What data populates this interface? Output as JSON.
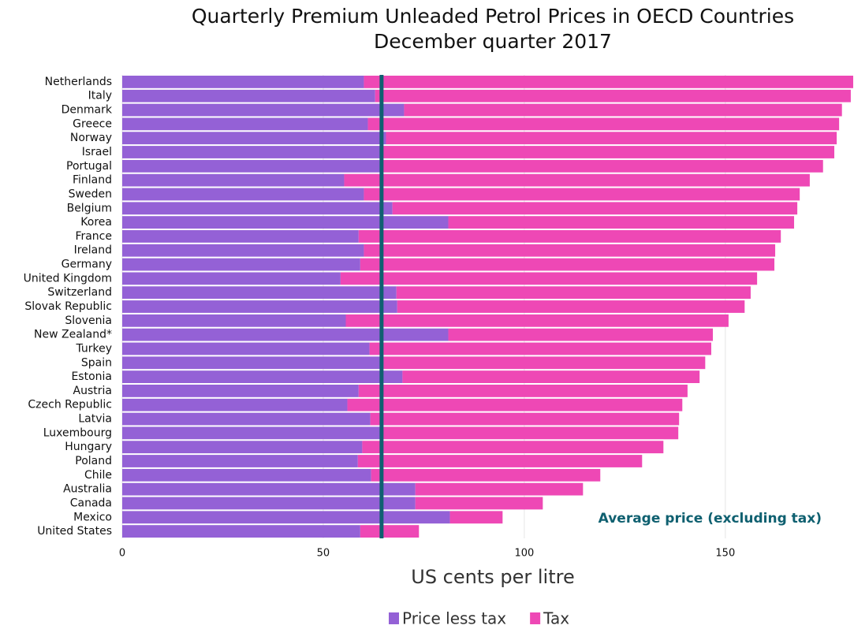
{
  "chart_data": {
    "type": "stacked_bar_horizontal",
    "title": "Quarterly Premium Unleaded Petrol Prices in OECD Countries",
    "subtitle": "December quarter 2017",
    "x_label": "US cents per litre",
    "categories": [
      "Netherlands",
      "Italy",
      "Denmark",
      "Greece",
      "Norway",
      "Israel",
      "Portugal",
      "Finland",
      "Sweden",
      "Belgium",
      "Korea",
      "France",
      "Ireland",
      "Germany",
      "United Kingdom",
      "Switzerland",
      "Slovak Republic",
      "Slovenia",
      "New Zealand*",
      "Turkey",
      "Spain",
      "Estonia",
      "Austria",
      "Czech Republic",
      "Latvia",
      "Luxembourg",
      "Hungary",
      "Poland",
      "Chile",
      "Australia",
      "Canada",
      "Mexico",
      "United States"
    ],
    "series": [
      {
        "name": "Price less tax",
        "color": "#9461d6",
        "values": [
          60.1,
          62.9,
          70.1,
          61.1,
          65.6,
          64.4,
          64.4,
          55.2,
          60.1,
          67.2,
          81.1,
          58.8,
          60.1,
          59.2,
          54.3,
          68.2,
          68.4,
          55.6,
          81.1,
          61.5,
          65.0,
          69.7,
          58.8,
          56.0,
          61.7,
          64.4,
          59.7,
          58.6,
          61.9,
          72.9,
          72.9,
          81.5,
          59.2
        ]
      },
      {
        "name": "Tax",
        "color": "#ee48b5",
        "values": [
          121.7,
          118.3,
          108.9,
          117.2,
          112.1,
          112.7,
          109.9,
          115.8,
          108.4,
          100.7,
          86.0,
          105.0,
          102.3,
          103.0,
          103.6,
          88.1,
          86.4,
          95.2,
          65.8,
          85.0,
          80.0,
          73.9,
          81.8,
          83.3,
          76.8,
          73.9,
          74.9,
          70.7,
          57.0,
          41.7,
          31.7,
          13.1,
          14.6
        ]
      }
    ],
    "average_line": {
      "value": 64.5,
      "label": "Average price (excluding tax)",
      "color": "#0f6070"
    },
    "xlim": [
      0,
      182
    ],
    "xticks": [
      0,
      50,
      100,
      150
    ],
    "grid": true,
    "legend": "bottom"
  }
}
